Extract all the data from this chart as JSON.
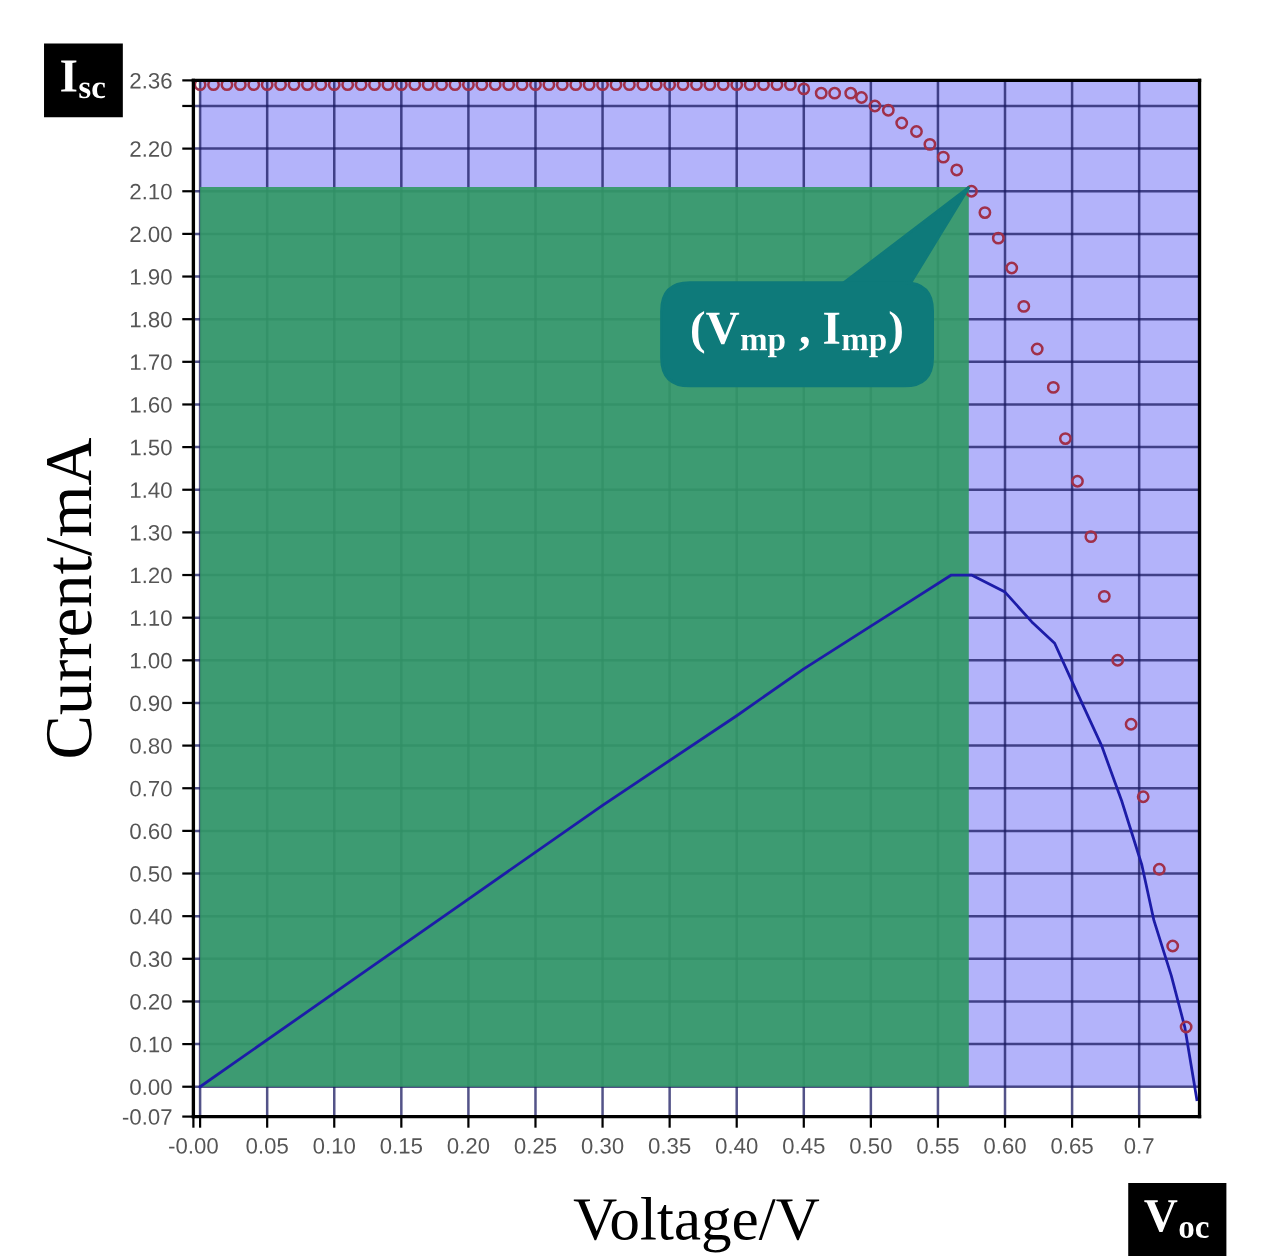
{
  "chart_data": {
    "type": "scatter",
    "xlabel": "Voltage/V",
    "ylabel": "Current/mA",
    "xlim": [
      -0.005,
      0.745
    ],
    "ylim": [
      -0.07,
      2.36
    ],
    "xticks": [
      {
        "value": -0.005,
        "label": "-0.00"
      },
      {
        "value": 0,
        "label": null
      },
      {
        "value": 0.05,
        "label": "0.05"
      },
      {
        "value": 0.1,
        "label": "0.10"
      },
      {
        "value": 0.15,
        "label": "0.15"
      },
      {
        "value": 0.2,
        "label": "0.20"
      },
      {
        "value": 0.25,
        "label": "0.25"
      },
      {
        "value": 0.3,
        "label": "0.30"
      },
      {
        "value": 0.35,
        "label": "0.35"
      },
      {
        "value": 0.4,
        "label": "0.40"
      },
      {
        "value": 0.45,
        "label": "0.45"
      },
      {
        "value": 0.5,
        "label": "0.50"
      },
      {
        "value": 0.55,
        "label": "0.55"
      },
      {
        "value": 0.6,
        "label": "0.60"
      },
      {
        "value": 0.65,
        "label": "0.65"
      },
      {
        "value": 0.7,
        "label": "0.7"
      }
    ],
    "yticks": [
      {
        "value": -0.07,
        "label": "-0.07"
      },
      {
        "value": 0,
        "label": "0.00"
      },
      {
        "value": 0.1,
        "label": "0.10"
      },
      {
        "value": 0.2,
        "label": "0.20"
      },
      {
        "value": 0.3,
        "label": "0.30"
      },
      {
        "value": 0.4,
        "label": "0.40"
      },
      {
        "value": 0.5,
        "label": "0.50"
      },
      {
        "value": 0.6,
        "label": "0.60"
      },
      {
        "value": 0.7,
        "label": "0.70"
      },
      {
        "value": 0.8,
        "label": "0.80"
      },
      {
        "value": 0.9,
        "label": "0.90"
      },
      {
        "value": 1.0,
        "label": "1.00"
      },
      {
        "value": 1.1,
        "label": "1.10"
      },
      {
        "value": 1.2,
        "label": "1.20"
      },
      {
        "value": 1.3,
        "label": "1.30"
      },
      {
        "value": 1.4,
        "label": "1.40"
      },
      {
        "value": 1.5,
        "label": "1.50"
      },
      {
        "value": 1.6,
        "label": "1.60"
      },
      {
        "value": 1.7,
        "label": "1.70"
      },
      {
        "value": 1.8,
        "label": "1.80"
      },
      {
        "value": 1.9,
        "label": "1.90"
      },
      {
        "value": 2.0,
        "label": "2.00"
      },
      {
        "value": 2.1,
        "label": "2.10"
      },
      {
        "value": 2.2,
        "label": "2.20"
      },
      {
        "value": 2.3,
        "label": null
      },
      {
        "value": 2.36,
        "label": "2.36"
      }
    ],
    "grid": true,
    "legend": false,
    "series": [
      {
        "type": "area",
        "color": "#b3b3fa",
        "x": [
          0,
          0.745
        ],
        "values": [
          2.36,
          2.36
        ]
      },
      {
        "type": "line",
        "color": "#1c1ca8",
        "marker": "none",
        "line_style": "solid",
        "x": [
          0,
          0.1,
          0.2,
          0.3,
          0.4,
          0.45,
          0.5,
          0.53,
          0.56,
          0.575,
          0.6,
          0.62,
          0.637,
          0.65,
          0.672,
          0.687,
          0.702,
          0.711,
          0.724,
          0.734,
          0.743
        ],
        "values": [
          0,
          0.22,
          0.44,
          0.66,
          0.87,
          0.98,
          1.08,
          1.14,
          1.2,
          1.2,
          1.16,
          1.09,
          1.04,
          0.95,
          0.8,
          0.67,
          0.52,
          0.39,
          0.26,
          0.14,
          -0.03
        ]
      },
      {
        "type": "area",
        "color": "#339966",
        "x": [
          0,
          0.573
        ],
        "values": [
          2.11,
          2.11
        ]
      },
      {
        "color": "#a0304a",
        "marker": "circle",
        "x": [
          0.0,
          0.01,
          0.02,
          0.03,
          0.04,
          0.05,
          0.06,
          0.07,
          0.08,
          0.09,
          0.1,
          0.11,
          0.12,
          0.13,
          0.14,
          0.15,
          0.16,
          0.17,
          0.18,
          0.19,
          0.2,
          0.21,
          0.22,
          0.23,
          0.24,
          0.25,
          0.26,
          0.27,
          0.28,
          0.29,
          0.3,
          0.31,
          0.32,
          0.33,
          0.34,
          0.35,
          0.36,
          0.37,
          0.38,
          0.39,
          0.4,
          0.41,
          0.42,
          0.43,
          0.44,
          0.45,
          0.463,
          0.473,
          0.485,
          0.493,
          0.503,
          0.513,
          0.523,
          0.534,
          0.544,
          0.554,
          0.564,
          0.575,
          0.585,
          0.595,
          0.605,
          0.614,
          0.624,
          0.636,
          0.645,
          0.654,
          0.664,
          0.674,
          0.684,
          0.694,
          0.703,
          0.715,
          0.725,
          0.735
        ],
        "values": [
          2.35,
          2.35,
          2.35,
          2.35,
          2.35,
          2.35,
          2.35,
          2.35,
          2.35,
          2.35,
          2.35,
          2.35,
          2.35,
          2.35,
          2.35,
          2.35,
          2.35,
          2.35,
          2.35,
          2.35,
          2.35,
          2.35,
          2.35,
          2.35,
          2.35,
          2.35,
          2.35,
          2.35,
          2.35,
          2.35,
          2.35,
          2.35,
          2.35,
          2.35,
          2.35,
          2.35,
          2.35,
          2.35,
          2.35,
          2.35,
          2.35,
          2.35,
          2.35,
          2.35,
          2.35,
          2.34,
          2.33,
          2.33,
          2.33,
          2.32,
          2.3,
          2.29,
          2.26,
          2.24,
          2.21,
          2.18,
          2.15,
          2.1,
          2.05,
          1.99,
          1.92,
          1.83,
          1.73,
          1.64,
          1.52,
          1.42,
          1.29,
          1.15,
          1.0,
          0.85,
          0.68,
          0.51,
          0.33,
          0.14
        ]
      }
    ],
    "annotations": [
      {
        "text": "I$_{sc}$",
        "x": 0,
        "y": 2.36
      },
      {
        "text": "V$_{oc}$",
        "x": 0.745,
        "y": 0
      },
      "(V$_{mp}$ , I$_{mp}$)"
    ]
  }
}
